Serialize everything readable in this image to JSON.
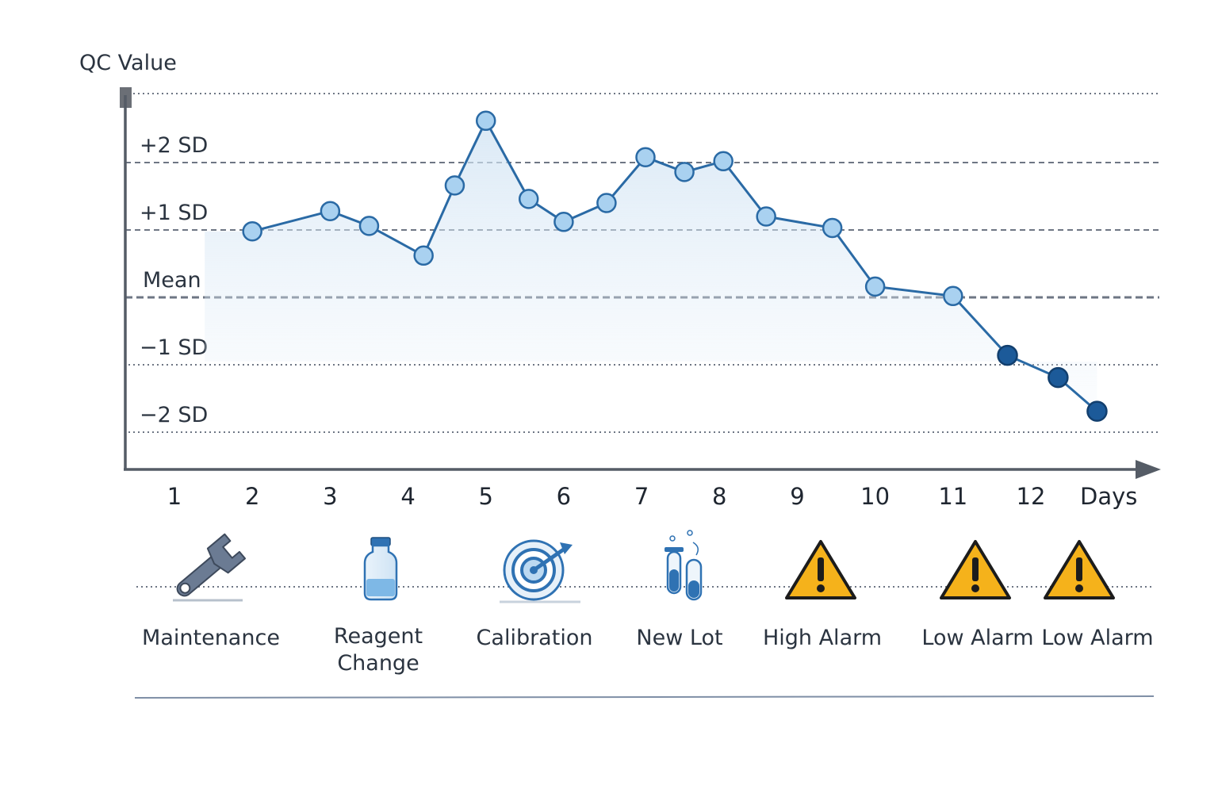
{
  "chart_data": {
    "type": "line",
    "ylabel": "QC Value",
    "xlabel": "Days",
    "x_ticks": [
      "1",
      "2",
      "3",
      "4",
      "5",
      "6",
      "7",
      "8",
      "9",
      "10",
      "11",
      "12"
    ],
    "y_ticks": [
      {
        "label": "+2 SD",
        "value": 2,
        "style": "dashed"
      },
      {
        "label": "+1 SD",
        "value": 1,
        "style": "dashed"
      },
      {
        "label": "Mean",
        "value": 0,
        "style": "dashed-bold"
      },
      {
        "label": "−1 SD",
        "value": -1,
        "style": "dotted"
      },
      {
        "label": "−2 SD",
        "value": -2,
        "style": "dotted"
      }
    ],
    "top_gridline_value": 3,
    "ylim": [
      -2.5,
      3.2
    ],
    "xlim": [
      0.7,
      13.5
    ],
    "points": [
      {
        "x": 2.0,
        "y": 0.98,
        "flag": "normal"
      },
      {
        "x": 3.0,
        "y": 1.28,
        "flag": "normal"
      },
      {
        "x": 3.5,
        "y": 1.06,
        "flag": "normal"
      },
      {
        "x": 4.2,
        "y": 0.62,
        "flag": "normal"
      },
      {
        "x": 4.6,
        "y": 1.66,
        "flag": "normal"
      },
      {
        "x": 5.0,
        "y": 2.62,
        "flag": "normal"
      },
      {
        "x": 5.55,
        "y": 1.46,
        "flag": "normal"
      },
      {
        "x": 6.0,
        "y": 1.12,
        "flag": "normal"
      },
      {
        "x": 6.55,
        "y": 1.4,
        "flag": "normal"
      },
      {
        "x": 7.05,
        "y": 2.08,
        "flag": "normal"
      },
      {
        "x": 7.55,
        "y": 1.86,
        "flag": "normal"
      },
      {
        "x": 8.05,
        "y": 2.02,
        "flag": "normal"
      },
      {
        "x": 8.6,
        "y": 1.2,
        "flag": "normal"
      },
      {
        "x": 9.45,
        "y": 1.03,
        "flag": "normal"
      },
      {
        "x": 10.0,
        "y": 0.16,
        "flag": "normal"
      },
      {
        "x": 11.0,
        "y": 0.02,
        "flag": "normal"
      },
      {
        "x": 11.7,
        "y": -0.86,
        "flag": "alarm"
      },
      {
        "x": 12.35,
        "y": -1.19,
        "flag": "alarm"
      },
      {
        "x": 12.85,
        "y": -1.69,
        "flag": "alarm"
      }
    ],
    "grid": true,
    "colors": {
      "line": "#2a6aa5",
      "point_fill": "#a9d1f0",
      "alarm_fill": "#1c5a99",
      "area": "#cfe2f3",
      "axis": "#555c66",
      "gridline": "#6e7684"
    }
  },
  "events": [
    {
      "label": "Maintenance",
      "icon": "wrench-icon"
    },
    {
      "label": "Reagent Change",
      "icon": "reagent-bottle-icon"
    },
    {
      "label": "Calibration",
      "icon": "calibration-target-icon"
    },
    {
      "label": "New Lot",
      "icon": "test-tubes-icon"
    },
    {
      "label": "High Alarm",
      "icon": "warning-icon"
    },
    {
      "label": "Low Alarm",
      "icon": "warning-icon"
    },
    {
      "label": "Low Alarm",
      "icon": "warning-icon"
    }
  ],
  "colors": {
    "warning_fill": "#f5b21b",
    "warning_stroke": "#1c1c1c",
    "icon_blue": "#2f72b3",
    "wrench": "#6b7b93"
  }
}
